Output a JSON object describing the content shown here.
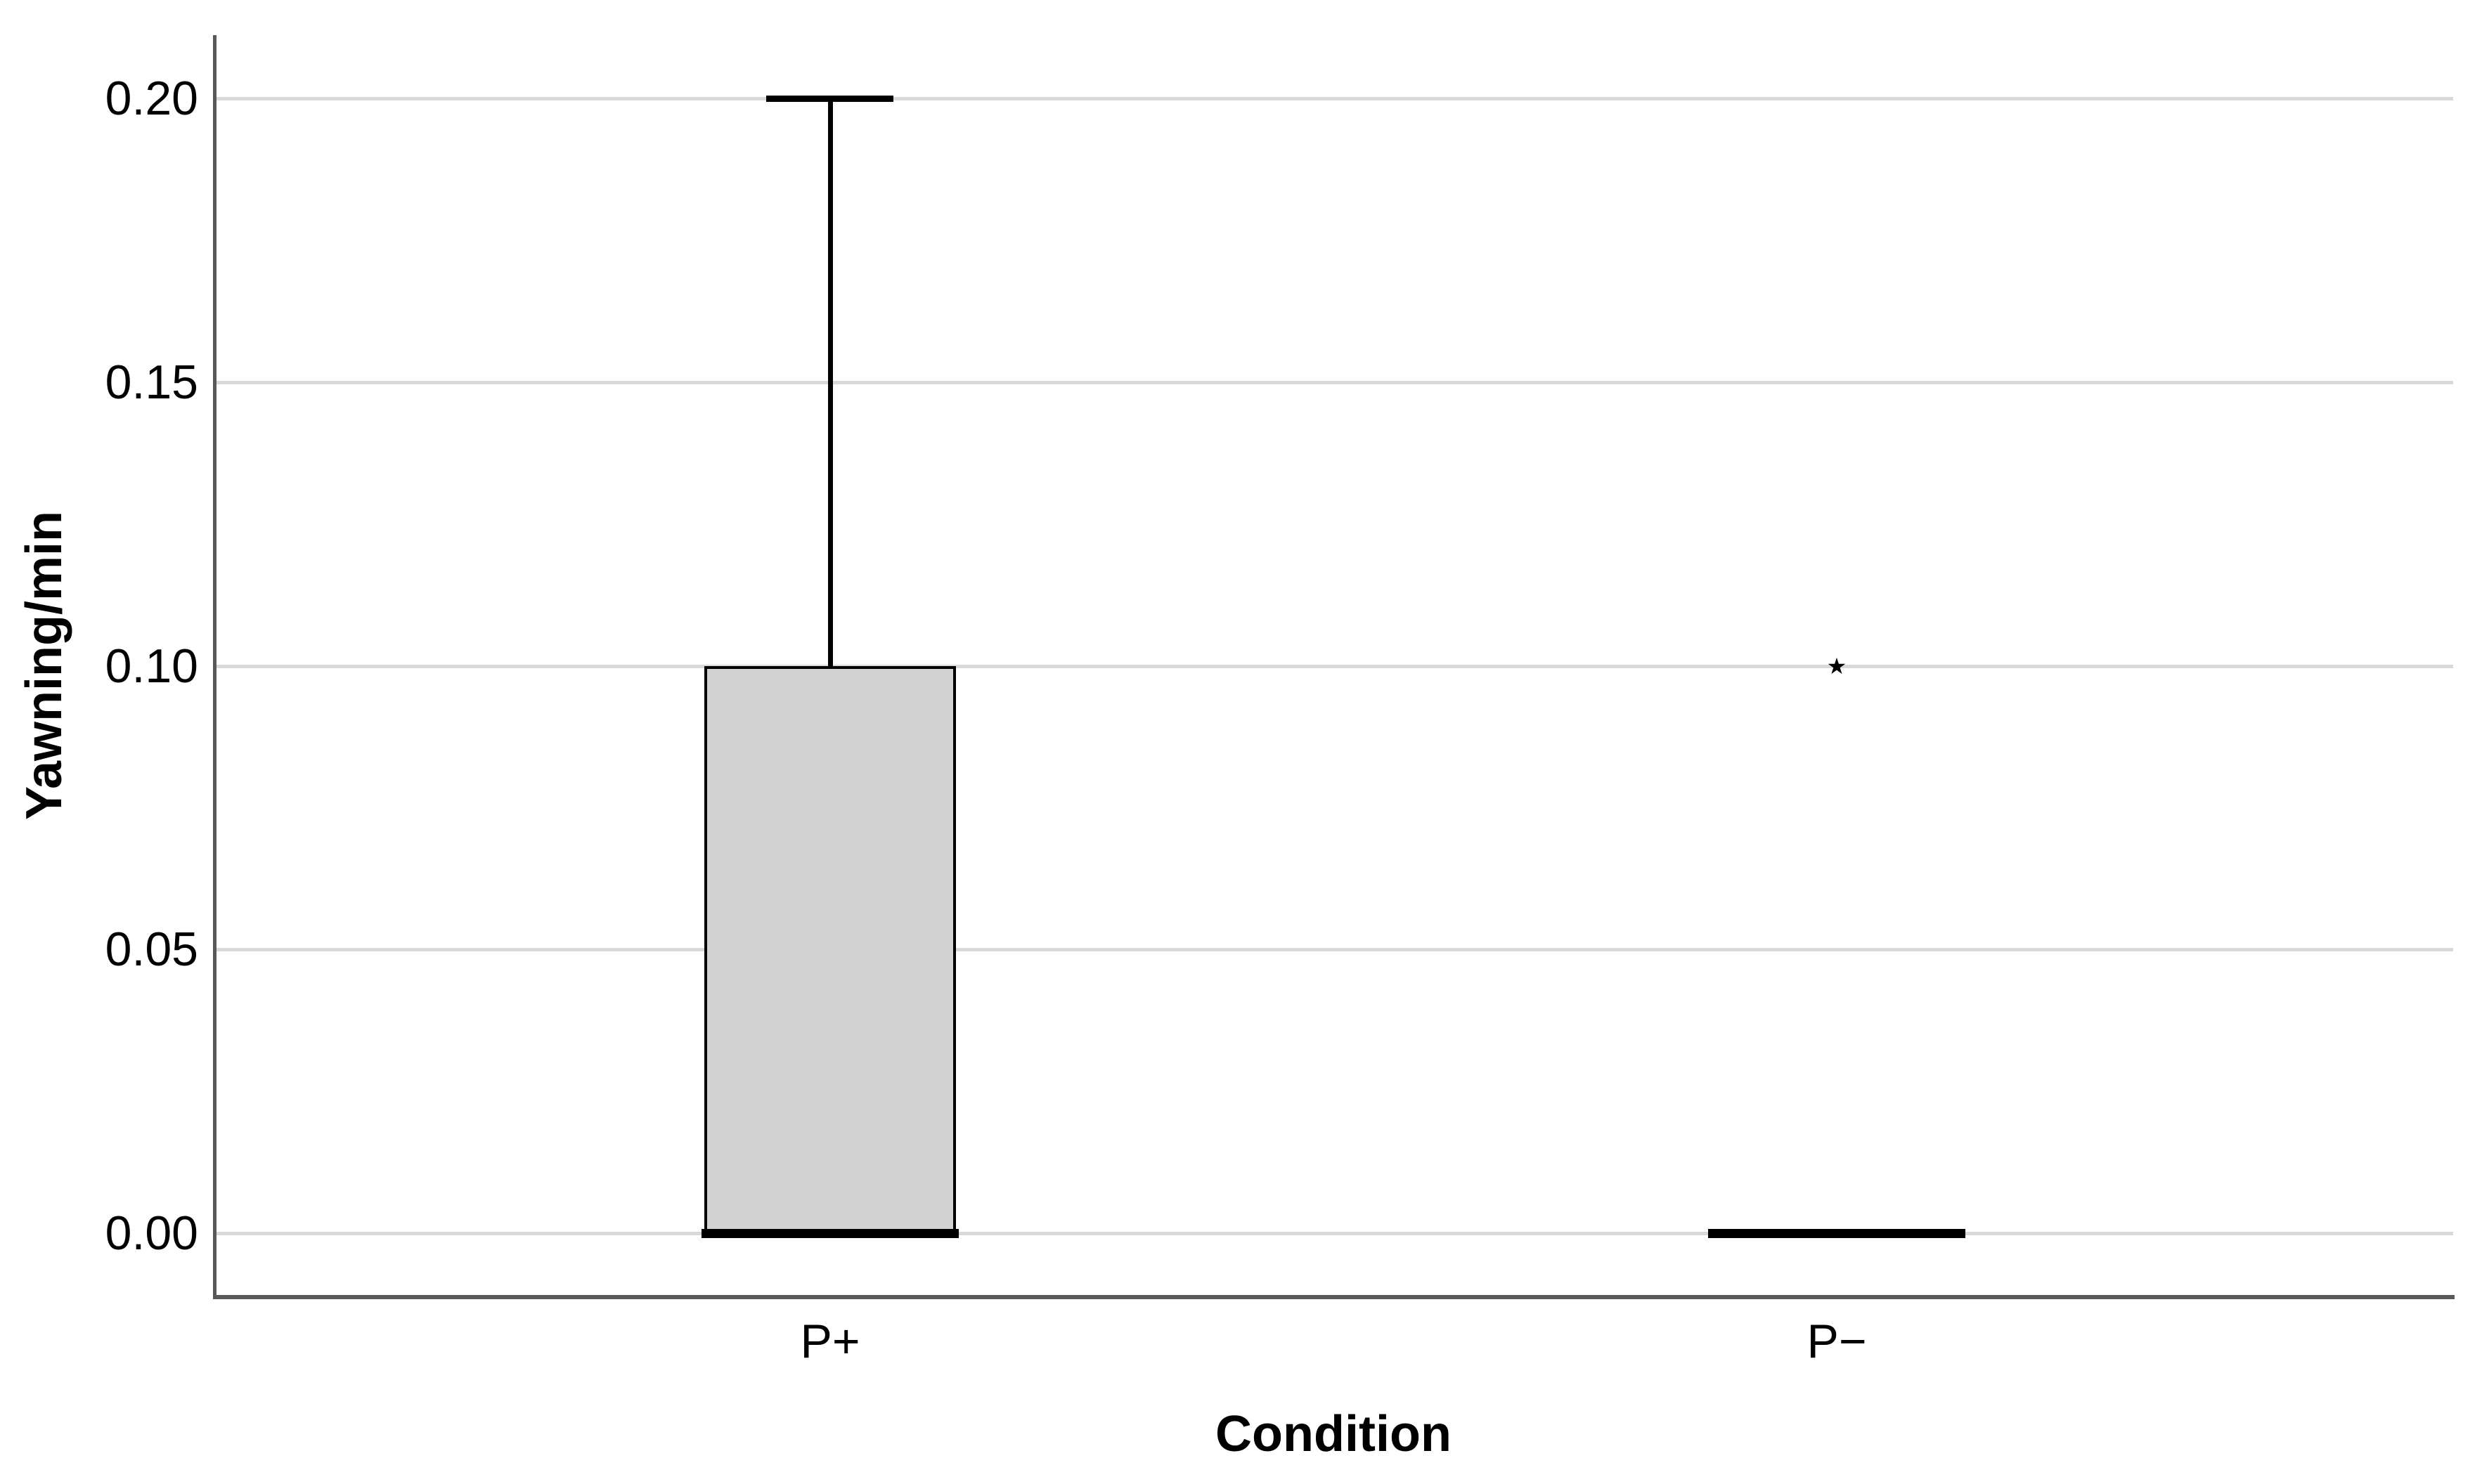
{
  "chart_data": {
    "type": "boxplot",
    "title": "",
    "xlabel": "Condition",
    "ylabel": "Yawning/min",
    "categories": [
      "P+",
      "P−"
    ],
    "y_axis": {
      "ticks": [
        0.2,
        0.15,
        0.1,
        0.05,
        0.0
      ],
      "tick_labels": [
        "0.20",
        "0.15",
        "0.10",
        "0.05",
        "0.00"
      ],
      "grid": true,
      "range_shown": [
        -0.011,
        0.211
      ]
    },
    "series": [
      {
        "category": "P+",
        "median": 0.0,
        "q1": 0.0,
        "q3": 0.1,
        "whisker_low": 0.0,
        "whisker_high": 0.2,
        "outliers": [],
        "extreme_values": []
      },
      {
        "category": "P−",
        "median": 0.0,
        "q1": 0.0,
        "q3": 0.0,
        "whisker_low": 0.0,
        "whisker_high": 0.0,
        "outliers": [],
        "extreme_values": [
          0.1
        ]
      }
    ],
    "legend": null,
    "markers": {
      "extreme_value_glyph": "★"
    },
    "colors": {
      "box_fill": "#d2d2d2",
      "box_border": "#000000",
      "median": "#000000",
      "whisker": "#000000",
      "gridline": "#d9d9d9",
      "axis": "#595959",
      "text": "#000000",
      "marker": "#000000"
    }
  }
}
